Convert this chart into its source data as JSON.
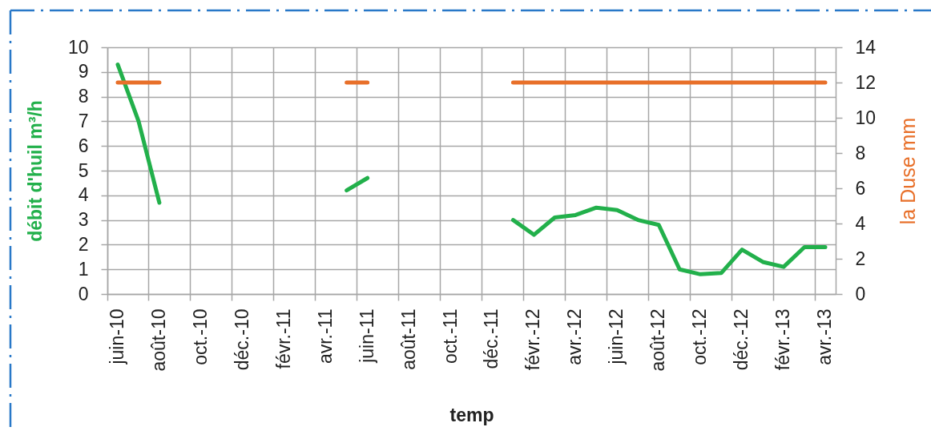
{
  "chart_data": {
    "type": "line",
    "xlabel": "temp",
    "ylabel": "débit d'huil m³/h",
    "y2label": "la Duse mm",
    "categories": [
      "juin-10",
      null,
      "août-10",
      null,
      "oct.-10",
      null,
      "déc.-10",
      null,
      "févr.-11",
      null,
      "avr.-11",
      null,
      "juin-11",
      null,
      "août-11",
      null,
      "oct.-11",
      null,
      "déc.-11",
      null,
      "févr.-12",
      null,
      "avr.-12",
      null,
      "juin-12",
      null,
      "août-12",
      null,
      "oct.-12",
      null,
      "déc.-12",
      null,
      "févr.-13",
      null,
      "avr.-13"
    ],
    "series": [
      {
        "color": "#22b04b",
        "values": [
          9.3,
          7.0,
          3.7,
          null,
          null,
          null,
          null,
          null,
          null,
          null,
          null,
          4.2,
          4.7,
          null,
          null,
          null,
          null,
          null,
          null,
          3.0,
          2.4,
          3.1,
          3.2,
          3.5,
          3.4,
          3.0,
          2.8,
          1.0,
          0.8,
          0.85,
          1.8,
          1.3,
          1.1,
          1.9,
          1.9
        ]
      },
      {
        "color": "#e8702a",
        "axis": "y2",
        "values": [
          12,
          12,
          12,
          null,
          null,
          null,
          null,
          null,
          null,
          null,
          null,
          12,
          12,
          null,
          null,
          null,
          null,
          null,
          null,
          12,
          12,
          12,
          12,
          12,
          12,
          12,
          12,
          12,
          12,
          12,
          12,
          12,
          12,
          12,
          12
        ]
      }
    ],
    "ylim": [
      0,
      10
    ],
    "yticks": [
      0,
      1,
      2,
      3,
      4,
      5,
      6,
      7,
      8,
      9,
      10
    ],
    "y2lim": [
      0,
      14
    ],
    "y2ticks": [
      0,
      2,
      4,
      6,
      8,
      10,
      12,
      14
    ],
    "grid": true
  }
}
